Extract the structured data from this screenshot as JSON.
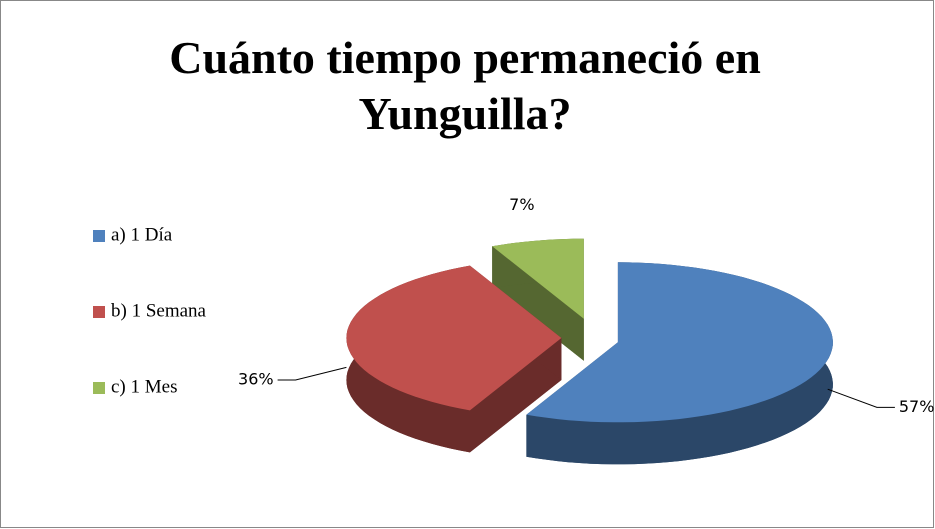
{
  "chart_data": {
    "type": "pie3d",
    "title": "Cuánto tiempo permaneció en Yunguilla?",
    "categories": [
      "a) 1 Día",
      "b) 1 Semana",
      "c) 1 Mes"
    ],
    "values": [
      57,
      36,
      7
    ],
    "value_labels": [
      "57%",
      "36%",
      "7%"
    ],
    "colors": [
      "#4f81bd",
      "#c0504d",
      "#9bbb59"
    ],
    "legend": "left"
  }
}
